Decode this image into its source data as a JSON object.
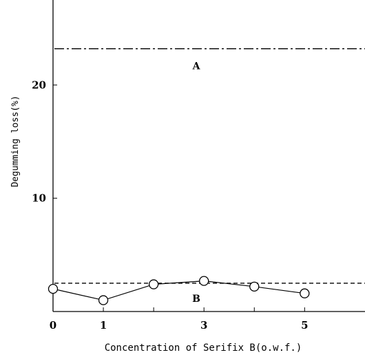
{
  "chart_data": {
    "type": "line",
    "title": "",
    "xlabel": "Concentration of Serifix B(o.w.f.)",
    "ylabel": "Degumming loss(%)",
    "xlim": [
      0,
      6.2
    ],
    "ylim": [
      0,
      27.5
    ],
    "x_tick_labels": [
      "0",
      "1",
      "3",
      "5"
    ],
    "x_ticks": [
      0,
      1,
      2,
      3,
      4,
      5
    ],
    "y_tick_labels": [
      "10",
      "20"
    ],
    "y_ticks": [
      10,
      20
    ],
    "series": [
      {
        "marker": "open-circle",
        "x": [
          0,
          1,
          2,
          3,
          4,
          5
        ],
        "y": [
          2.0,
          1.0,
          2.4,
          2.7,
          2.2,
          1.6
        ]
      }
    ],
    "reference_lines": [
      {
        "label": "A",
        "y": 23.2,
        "style": "dash-dot"
      },
      {
        "label": "B",
        "y": 2.5,
        "style": "dashed"
      }
    ],
    "grid": false,
    "legend": "none",
    "colors": {
      "ink": "#000000",
      "background": "#ffffff"
    }
  }
}
